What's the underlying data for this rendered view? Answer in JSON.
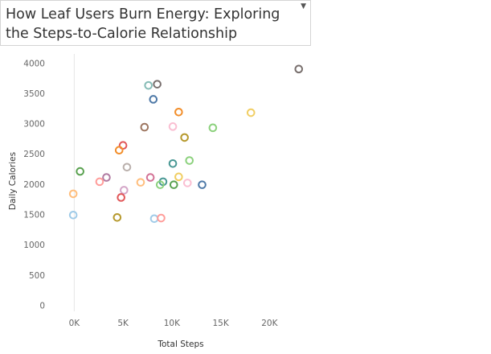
{
  "title": "How Leaf Users Burn Energy: Exploring the Steps-to-Calorie Relationship",
  "chart_data": {
    "type": "scatter",
    "title": "How Leaf Users Burn Energy: Exploring the Steps-to-Calorie Relationship",
    "xlabel": "Total Steps",
    "ylabel": "Daily Calories",
    "xlim": [
      -2500,
      24500
    ],
    "ylim": [
      -100,
      4150
    ],
    "x_ticks": [
      0,
      5000,
      10000,
      15000,
      20000
    ],
    "x_tick_labels": [
      "0K",
      "5K",
      "10K",
      "15K",
      "20K"
    ],
    "y_ticks": [
      0,
      500,
      1000,
      1500,
      2000,
      2500,
      3000,
      3500,
      4000
    ],
    "y_tick_labels": [
      "0",
      "500",
      "1000",
      "1500",
      "2000",
      "2500",
      "3000",
      "3500",
      "4000"
    ],
    "grid": false,
    "marker": "hollow-circle",
    "points": [
      {
        "x": 23000,
        "y": 3900,
        "color": "#79706e"
      },
      {
        "x": 7600,
        "y": 3630,
        "color": "#86bcb6"
      },
      {
        "x": 8500,
        "y": 3650,
        "color": "#79706e"
      },
      {
        "x": 8100,
        "y": 3400,
        "color": "#4e79a7"
      },
      {
        "x": 10700,
        "y": 3190,
        "color": "#f28e2b"
      },
      {
        "x": 18100,
        "y": 3180,
        "color": "#f1ce63"
      },
      {
        "x": 7200,
        "y": 2940,
        "color": "#9d7660"
      },
      {
        "x": 10100,
        "y": 2950,
        "color": "#fabfd2"
      },
      {
        "x": 14200,
        "y": 2930,
        "color": "#8cd17d"
      },
      {
        "x": 11300,
        "y": 2770,
        "color": "#b6992d"
      },
      {
        "x": 5000,
        "y": 2640,
        "color": "#e15759"
      },
      {
        "x": 4600,
        "y": 2560,
        "color": "#f28e2b"
      },
      {
        "x": 11800,
        "y": 2390,
        "color": "#8cd17d"
      },
      {
        "x": 10100,
        "y": 2340,
        "color": "#499894"
      },
      {
        "x": 5400,
        "y": 2280,
        "color": "#bab0ac"
      },
      {
        "x": 600,
        "y": 2210,
        "color": "#59a14f"
      },
      {
        "x": 3300,
        "y": 2110,
        "color": "#b07aa1"
      },
      {
        "x": 7800,
        "y": 2110,
        "color": "#d37295"
      },
      {
        "x": 10700,
        "y": 2120,
        "color": "#f1ce63"
      },
      {
        "x": 2600,
        "y": 2040,
        "color": "#ff9d9a"
      },
      {
        "x": 6800,
        "y": 2030,
        "color": "#ffbe7d"
      },
      {
        "x": 9100,
        "y": 2040,
        "color": "#499894"
      },
      {
        "x": 8800,
        "y": 1990,
        "color": "#8cd17d"
      },
      {
        "x": 10200,
        "y": 1990,
        "color": "#59a14f"
      },
      {
        "x": 11600,
        "y": 2020,
        "color": "#fabfd2"
      },
      {
        "x": 13100,
        "y": 1990,
        "color": "#4e79a7"
      },
      {
        "x": 5100,
        "y": 1900,
        "color": "#d4a6c8"
      },
      {
        "x": -100,
        "y": 1840,
        "color": "#ffbe7d"
      },
      {
        "x": 4800,
        "y": 1780,
        "color": "#e15759"
      },
      {
        "x": -100,
        "y": 1490,
        "color": "#a0cbe8"
      },
      {
        "x": 4400,
        "y": 1450,
        "color": "#b6992d"
      },
      {
        "x": 8200,
        "y": 1430,
        "color": "#a0cbe8"
      },
      {
        "x": 8900,
        "y": 1440,
        "color": "#ff9d9a"
      }
    ]
  }
}
